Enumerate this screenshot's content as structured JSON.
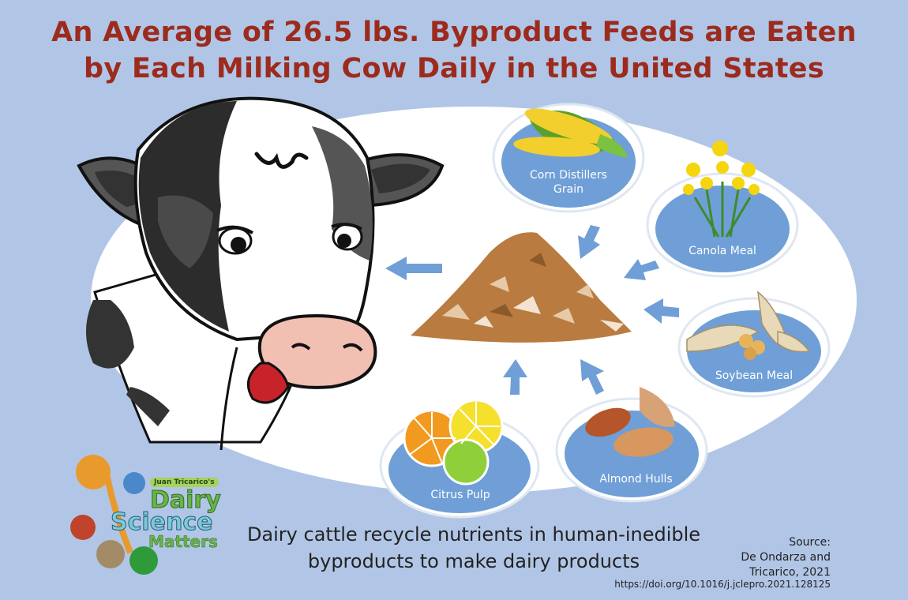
{
  "title": {
    "line1": "An Average of 26.5 lbs. Byproduct Feeds are Eaten",
    "line2": "by Each Milking Cow Daily in the United States"
  },
  "feeds": {
    "corn": {
      "line1": "Corn Distillers",
      "line2": "Grain"
    },
    "canola": "Canola Meal",
    "soybean": "Soybean Meal",
    "almond": "Almond Hulls",
    "citrus": "Citrus Pulp"
  },
  "message": {
    "line1": "Dairy cattle recycle nutrients in human-inedible",
    "line2": "byproducts to make dairy products"
  },
  "source": {
    "label": "Source:",
    "line1": "De Ondarza and",
    "line2": "Tricarico, 2021",
    "doi": "https://doi.org/10.1016/j.jclepro.2021.128125"
  },
  "logo": {
    "tagline": "Juan Tricarico's",
    "word1": "Dairy",
    "word2": "Science",
    "word3": "Matters"
  },
  "colors": {
    "background": "#b1c6e6",
    "title": "#9c2b1d",
    "bubble": "#6f9fd6",
    "arrow": "#6f9fd6",
    "feed_pile": "#b97b40"
  }
}
